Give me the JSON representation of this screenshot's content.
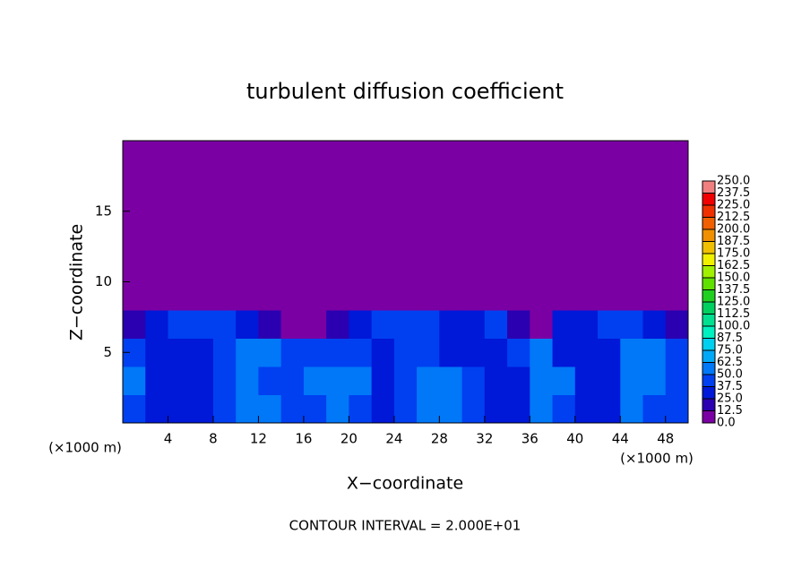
{
  "chart_data": {
    "type": "contour",
    "title": "turbulent diffusion coefficient",
    "x_label": "X−coordinate",
    "y_label": "Z−coordinate",
    "x_unit": "(×1000 m)",
    "y_unit": "(×1000 m)",
    "note": "CONTOUR INTERVAL = 2.000E+01",
    "xlim": [
      0,
      50
    ],
    "ylim": [
      0,
      20
    ],
    "xticks": [
      4,
      8,
      12,
      16,
      20,
      24,
      28,
      32,
      36,
      40,
      44,
      48
    ],
    "yticks": [
      5,
      10,
      15
    ],
    "xbins": [
      0,
      2,
      4,
      6,
      8,
      10,
      12,
      14,
      16,
      18,
      20,
      22,
      24,
      26,
      28,
      30,
      32,
      34,
      36,
      38,
      40,
      42,
      44,
      46,
      48,
      50
    ],
    "ybins": [
      0,
      2,
      4,
      6,
      8,
      10
    ],
    "z": [
      [
        40,
        30,
        30,
        35,
        45,
        55,
        50,
        45,
        40,
        55,
        45,
        30,
        40,
        60,
        55,
        45,
        30,
        30,
        55,
        45,
        30,
        35,
        55,
        45,
        40
      ],
      [
        55,
        30,
        30,
        30,
        40,
        55,
        45,
        40,
        50,
        55,
        50,
        35,
        40,
        55,
        50,
        45,
        30,
        30,
        55,
        50,
        30,
        30,
        55,
        50,
        45
      ],
      [
        45,
        30,
        30,
        35,
        45,
        55,
        50,
        45,
        40,
        45,
        40,
        35,
        45,
        40,
        35,
        30,
        35,
        45,
        55,
        35,
        30,
        30,
        50,
        50,
        40
      ],
      [
        20,
        35,
        40,
        40,
        45,
        30,
        15,
        10,
        5,
        15,
        35,
        40,
        45,
        40,
        35,
        30,
        40,
        15,
        10,
        30,
        35,
        40,
        45,
        35,
        20
      ],
      [
        0,
        0,
        0,
        5,
        10,
        0,
        0,
        0,
        0,
        0,
        0,
        0,
        5,
        10,
        5,
        0,
        0,
        0,
        0,
        0,
        5,
        10,
        5,
        0,
        0
      ]
    ],
    "background_color": "#7b00a3",
    "colorbar_ticks": [
      {
        "value": 0,
        "label": "0.0"
      },
      {
        "value": 12.5,
        "label": "12.5"
      },
      {
        "value": 25,
        "label": "25.0"
      },
      {
        "value": 37.5,
        "label": "37.5"
      },
      {
        "value": 50,
        "label": "50.0"
      },
      {
        "value": 62.5,
        "label": "62.5"
      },
      {
        "value": 75,
        "label": "75.0"
      },
      {
        "value": 87.5,
        "label": "87.5"
      },
      {
        "value": 100,
        "label": "100.0"
      },
      {
        "value": 112.5,
        "label": "112.5"
      },
      {
        "value": 125,
        "label": "125.0"
      },
      {
        "value": 137.5,
        "label": "137.5"
      },
      {
        "value": 150,
        "label": "150.0"
      },
      {
        "value": 162.5,
        "label": "162.5"
      },
      {
        "value": 175,
        "label": "175.0"
      },
      {
        "value": 187.5,
        "label": "187.5"
      },
      {
        "value": 200,
        "label": "200.0"
      },
      {
        "value": 212.5,
        "label": "212.5"
      },
      {
        "value": 225,
        "label": "225.0"
      },
      {
        "value": 237.5,
        "label": "237.5"
      },
      {
        "value": 250,
        "label": "250.0"
      }
    ],
    "colorbar_colors": [
      "#7b00a3",
      "#2a00b0",
      "#0018d8",
      "#0040f0",
      "#0078f8",
      "#00a8f8",
      "#00d0f0",
      "#00f0c0",
      "#00e090",
      "#00d060",
      "#20d020",
      "#60e000",
      "#a0f000",
      "#f0f000",
      "#f0c000",
      "#f09000",
      "#f06000",
      "#f03000",
      "#f00000",
      "#f08080"
    ]
  }
}
